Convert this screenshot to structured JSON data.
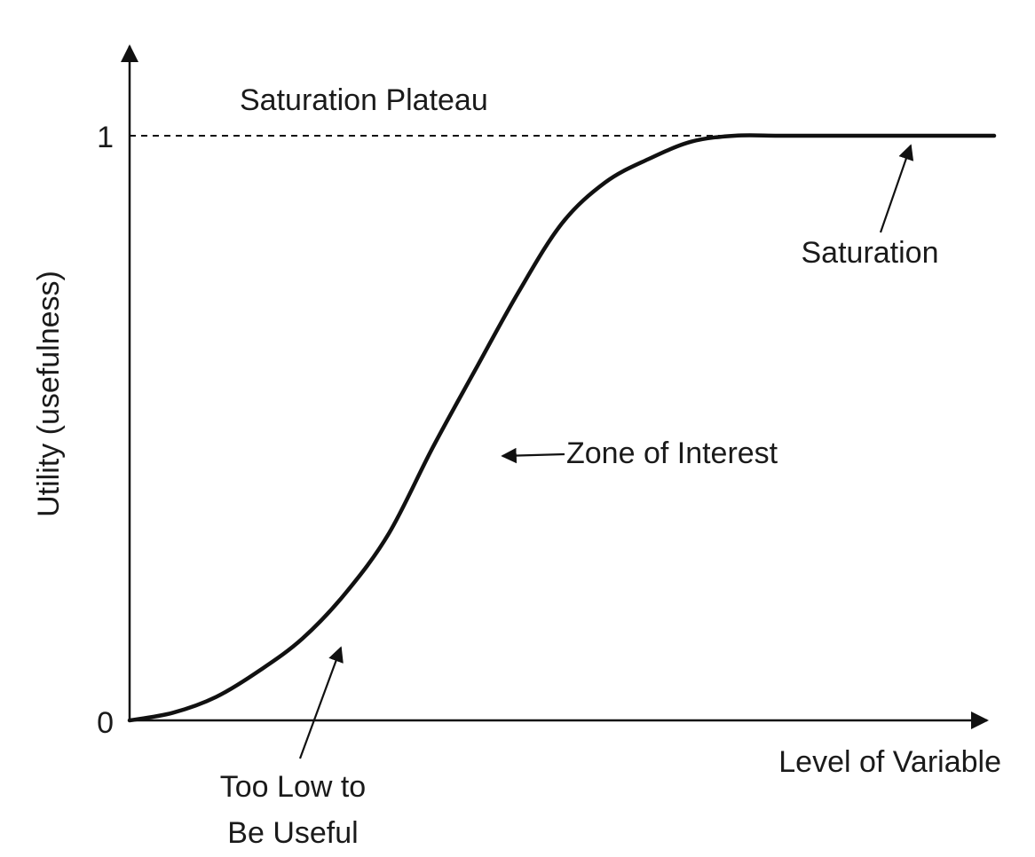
{
  "chart_data": {
    "type": "line",
    "title": "",
    "xlabel": "Level of Variable",
    "ylabel": "Utility (usefulness)",
    "ylim": [
      0,
      1
    ],
    "y_ticks": [
      "0",
      "1"
    ],
    "grid": false,
    "reference_line": {
      "label": "Saturation Plateau",
      "y": 1,
      "style": "dashed"
    },
    "series": [
      {
        "x": [
          0,
          0.05,
          0.1,
          0.15,
          0.2,
          0.25,
          0.3,
          0.35,
          0.4,
          0.45,
          0.5,
          0.55,
          0.6,
          0.65,
          0.7,
          0.75,
          0.8,
          0.85,
          0.9,
          0.95,
          1
        ],
        "values": [
          0,
          0.013,
          0.04,
          0.085,
          0.14,
          0.218,
          0.32,
          0.465,
          0.6,
          0.733,
          0.85,
          0.92,
          0.96,
          0.99,
          1,
          1,
          1,
          1,
          1,
          1,
          1
        ]
      }
    ],
    "annotations": [
      {
        "id": "saturation",
        "lines": [
          "Saturation"
        ],
        "points_to": {
          "x": 0.9,
          "y": 1
        }
      },
      {
        "id": "zone",
        "lines": [
          "Zone of Interest"
        ],
        "points_to": {
          "x": 0.42,
          "y": 0.45
        }
      },
      {
        "id": "toolow",
        "lines": [
          "Too Low to",
          "Be Useful"
        ],
        "points_to": {
          "x": 0.25,
          "y": 0.135
        }
      }
    ]
  },
  "colors": {
    "ink": "#111111",
    "background": "#ffffff"
  }
}
